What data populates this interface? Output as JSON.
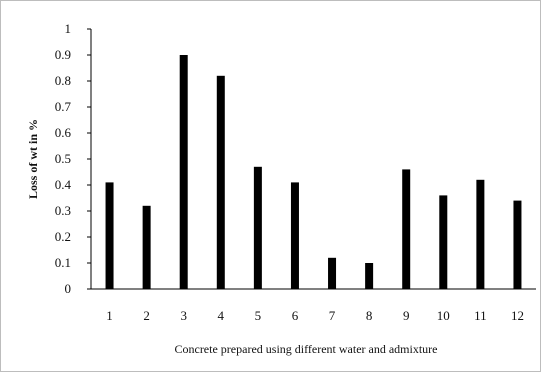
{
  "chart_data": {
    "type": "bar",
    "categories": [
      "1",
      "2",
      "3",
      "4",
      "5",
      "6",
      "7",
      "8",
      "9",
      "10",
      "11",
      "12"
    ],
    "values": [
      0.41,
      0.32,
      0.9,
      0.82,
      0.47,
      0.41,
      0.12,
      0.1,
      0.46,
      0.36,
      0.42,
      0.34
    ],
    "title": "",
    "xlabel": "Concrete prepared using different water and admixture",
    "ylabel": "Loss of wt in %",
    "ylim": [
      0,
      1
    ],
    "yticks": [
      "0",
      "0.1",
      "0.2",
      "0.3",
      "0.4",
      "0.5",
      "0.6",
      "0.7",
      "0.8",
      "0.9",
      "1"
    ],
    "grid": false,
    "legend": "none",
    "bar_color": "#000000"
  }
}
